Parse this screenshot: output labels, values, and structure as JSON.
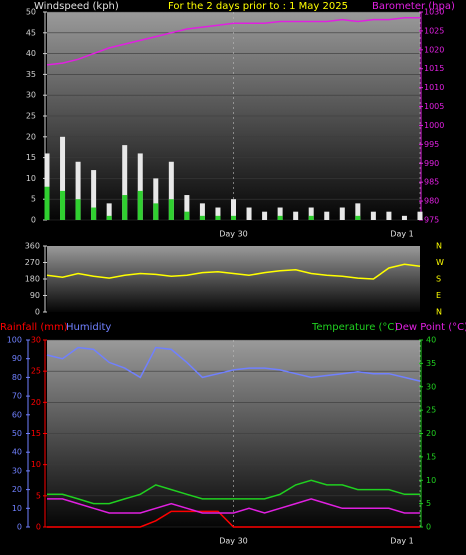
{
  "chart_data": [
    {
      "type": "combo",
      "title": "For the 2 days prior to : 1 May 2025",
      "x": [
        0,
        2,
        4,
        6,
        8,
        10,
        12,
        14,
        16,
        18,
        20,
        22,
        24,
        26,
        28,
        30,
        32,
        34,
        36,
        38,
        40,
        42,
        44,
        46,
        48
      ],
      "xlim": [
        0,
        48
      ],
      "xticks": [
        {
          "value": 24,
          "label": "Day 30"
        },
        {
          "value": 48,
          "label": "Day 1"
        }
      ],
      "ylim": [
        0,
        50
      ],
      "yticks": [
        0,
        5,
        10,
        15,
        20,
        25,
        30,
        35,
        40,
        45,
        50
      ],
      "y2lim": [
        975,
        1030
      ],
      "y2ticks": [
        975,
        980,
        985,
        990,
        995,
        1000,
        1005,
        1010,
        1015,
        1020,
        1025,
        1030
      ],
      "grid": true,
      "series": [
        {
          "name": "Windspeed (kph)",
          "style": "bar",
          "color": "#e8e8e8",
          "axis": "y",
          "values": [
            16,
            20,
            14,
            12,
            4,
            18,
            16,
            10,
            14,
            6,
            4,
            3,
            5,
            3,
            2,
            3,
            2,
            3,
            2,
            3,
            4,
            2,
            2,
            1,
            2
          ]
        },
        {
          "style": "bar",
          "color": "#30d030",
          "axis": "y",
          "values": [
            8,
            7,
            5,
            3,
            1,
            6,
            7,
            4,
            5,
            2,
            1,
            1,
            1,
            0,
            0,
            1,
            0,
            1,
            0,
            0,
            1,
            0,
            0,
            0,
            0
          ]
        },
        {
          "name": "Barometer (hpa)",
          "style": "line",
          "color": "#e020e0",
          "axis": "y2",
          "values": [
            1016,
            1016.5,
            1017.5,
            1019,
            1020.5,
            1021.5,
            1022.5,
            1023.5,
            1024.5,
            1025.5,
            1026,
            1026.5,
            1027,
            1027,
            1027,
            1027.5,
            1027.5,
            1027.5,
            1027.5,
            1028,
            1027.5,
            1028,
            1028,
            1028.5,
            1028.5
          ]
        }
      ]
    },
    {
      "type": "line",
      "x": [
        0,
        2,
        4,
        6,
        8,
        10,
        12,
        14,
        16,
        18,
        20,
        22,
        24,
        26,
        28,
        30,
        32,
        34,
        36,
        38,
        40,
        42,
        44,
        46,
        48
      ],
      "xlim": [
        0,
        48
      ],
      "ylim": [
        0,
        360
      ],
      "yticks": [
        0,
        90,
        180,
        270,
        360
      ],
      "y2lim": [
        0,
        360
      ],
      "y2ticks": [
        {
          "value": 0,
          "label": "N"
        },
        {
          "value": 90,
          "label": "E"
        },
        {
          "value": 180,
          "label": "S"
        },
        {
          "value": 270,
          "label": "W"
        },
        {
          "value": 360,
          "label": "N"
        }
      ],
      "series": [
        {
          "style": "line",
          "color": "#ffff00",
          "axis": "y",
          "values": [
            200,
            190,
            210,
            195,
            185,
            200,
            210,
            205,
            195,
            200,
            215,
            220,
            210,
            200,
            215,
            225,
            230,
            210,
            200,
            195,
            185,
            180,
            240,
            260,
            250
          ]
        }
      ]
    },
    {
      "type": "line",
      "x": [
        0,
        2,
        4,
        6,
        8,
        10,
        12,
        14,
        16,
        18,
        20,
        22,
        24,
        26,
        28,
        30,
        32,
        34,
        36,
        38,
        40,
        42,
        44,
        46,
        48
      ],
      "xlim": [
        0,
        48
      ],
      "xticks": [
        {
          "value": 24,
          "label": "Day 30"
        },
        {
          "value": 48,
          "label": "Day 1"
        }
      ],
      "ylim": [
        0,
        30
      ],
      "yticks": [
        0,
        5,
        10,
        15,
        20,
        25,
        30
      ],
      "y3lim": [
        0,
        100
      ],
      "y3ticks": [
        0,
        10,
        20,
        30,
        40,
        50,
        60,
        70,
        80,
        90,
        100
      ],
      "y2lim": [
        0,
        40
      ],
      "y2ticks": [
        0,
        5,
        10,
        15,
        20,
        25,
        30,
        35,
        40
      ],
      "grid": true,
      "series": [
        {
          "name": "Rainfall (mm)",
          "style": "line",
          "color": "#ff0000",
          "axis": "y",
          "values": [
            0,
            0,
            0,
            0,
            0,
            0,
            0,
            1,
            2.5,
            2.5,
            2.5,
            2.5,
            0,
            0,
            0,
            0,
            0,
            0,
            0,
            0,
            0,
            0,
            0,
            0,
            0
          ]
        },
        {
          "name": "Humidity",
          "style": "line",
          "color": "#7080ff",
          "axis": "y3",
          "values": [
            92,
            90,
            96,
            95,
            88,
            85,
            80,
            96,
            95,
            88,
            80,
            82,
            84,
            85,
            85,
            84,
            82,
            80,
            81,
            82,
            83,
            82,
            82,
            80,
            78
          ]
        },
        {
          "name": "Temperature (°C)",
          "style": "line",
          "color": "#20d020",
          "axis": "y2",
          "values": [
            7,
            7,
            6,
            5,
            5,
            6,
            7,
            9,
            8,
            7,
            6,
            6,
            6,
            6,
            6,
            7,
            9,
            10,
            9,
            9,
            8,
            8,
            8,
            7,
            7
          ]
        },
        {
          "name": "Dew Point (°C)",
          "style": "line",
          "color": "#e020e0",
          "axis": "y2",
          "values": [
            6,
            6,
            5,
            4,
            3,
            3,
            3,
            4,
            5,
            4,
            3,
            3,
            3,
            4,
            3,
            4,
            5,
            6,
            5,
            4,
            4,
            4,
            4,
            3,
            3
          ]
        }
      ]
    }
  ]
}
